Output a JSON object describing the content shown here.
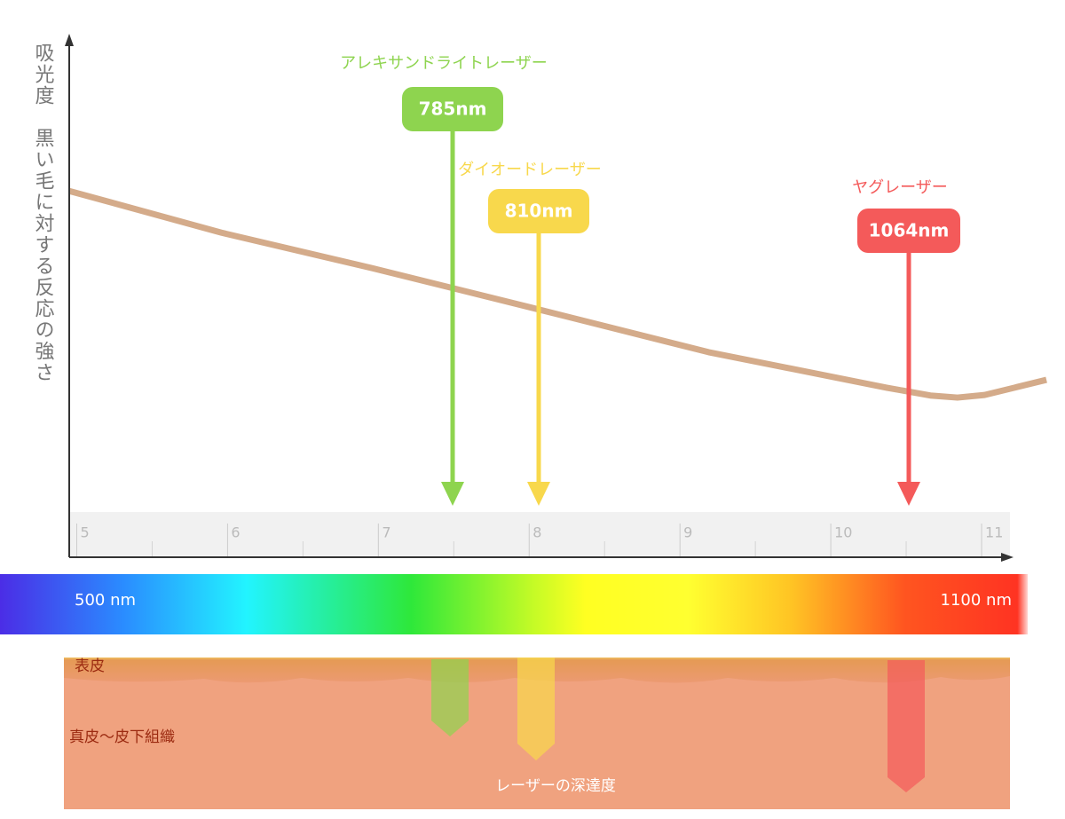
{
  "chart_data": {
    "type": "line",
    "y_label": "吸光度　黒い毛に対する反応の強さ",
    "x": [
      4.95,
      5.96,
      6.96,
      8.02,
      9.19,
      10.37,
      10.66,
      10.84,
      11.02,
      11.43
    ],
    "series": [
      {
        "color": "#d4ab8a",
        "values": [
          70.2,
          62.2,
          55.4,
          47.8,
          39.3,
          32.5,
          31.0,
          30.6,
          31.1,
          34.0
        ]
      }
    ],
    "xlim": [
      4.95,
      11.2
    ],
    "ylim": [
      0,
      100
    ],
    "xticks": [
      5,
      6,
      7,
      8,
      9,
      10,
      11
    ]
  },
  "lasers": [
    {
      "name": "アレキサンドライトレーザー",
      "label": "785nm",
      "color": "#8ed44f"
    },
    {
      "name": "ダイオードレーザー",
      "label": "810nm",
      "color": "#f8d84c"
    },
    {
      "name": "ヤグレーザー",
      "label": "1064nm",
      "color": "#f45a5a"
    }
  ],
  "spectrum": {
    "start_label": "500 nm",
    "end_label": "1100 nm"
  },
  "skin": {
    "epidermis": "表皮",
    "dermis": "真皮〜皮下組織",
    "caption": "レーザーの深達度"
  }
}
